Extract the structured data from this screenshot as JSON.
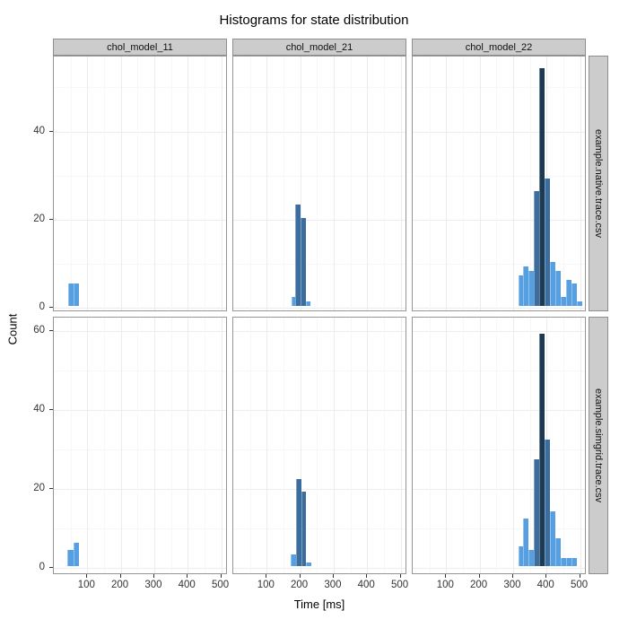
{
  "title": "Histograms for state distribution",
  "axes": {
    "x_label": "Time [ms]",
    "y_label": "Count"
  },
  "facets": {
    "columns": [
      "chol_model_11",
      "chol_model_21",
      "chol_model_22"
    ],
    "rows": [
      "example.native.trace.csv",
      "example.simgrid.trace.csv"
    ]
  },
  "colors": {
    "light": "#56a0e2",
    "mid": "#3b6e9e",
    "navy": "#1d3a55",
    "strip_bg": "#cccccc",
    "strip_border": "#8e8e8e",
    "panel_border": "#969696",
    "grid_major": "#ececec",
    "grid_minor": "#f7f7f7"
  },
  "chart_data": {
    "type": "bar",
    "subtype": "faceted-histogram",
    "title": "Histograms for state distribution",
    "xlabel": "Time [ms]",
    "ylabel": "Count",
    "grid": "on",
    "legend": "none",
    "x_domain": [
      0,
      520
    ],
    "x_ticks": [
      100,
      200,
      300,
      400,
      500
    ],
    "x_minor_gridlines": [
      50,
      150,
      250,
      350,
      450
    ],
    "row_scales": [
      {
        "row_label": "example.native.trace.csv",
        "ticks": [
          0,
          20,
          40
        ],
        "minor": [
          10,
          30,
          50
        ],
        "ymax": 57
      },
      {
        "row_label": "example.simgrid.trace.csv",
        "ticks": [
          0,
          20,
          40,
          60
        ],
        "minor": [
          10,
          30,
          50
        ],
        "ymax": 63.5
      }
    ],
    "panels": [
      {
        "row": 0,
        "col": 0,
        "row_label": "example.native.trace.csv",
        "col_label": "chol_model_11",
        "bars": [
          {
            "x": 44,
            "w": 16,
            "v": 5,
            "c": "light"
          },
          {
            "x": 60,
            "w": 16,
            "v": 5,
            "c": "light"
          }
        ]
      },
      {
        "row": 0,
        "col": 1,
        "row_label": "example.native.trace.csv",
        "col_label": "chol_model_21",
        "bars": [
          {
            "x": 175,
            "w": 11,
            "v": 2,
            "c": "light"
          },
          {
            "x": 186,
            "w": 16,
            "v": 23,
            "c": "mid"
          },
          {
            "x": 202,
            "w": 16,
            "v": 20,
            "c": "mid"
          },
          {
            "x": 218,
            "w": 13,
            "v": 1,
            "c": "light"
          }
        ]
      },
      {
        "row": 0,
        "col": 2,
        "row_label": "example.native.trace.csv",
        "col_label": "chol_model_22",
        "bars": [
          {
            "x": 315,
            "w": 16,
            "v": 7,
            "c": "light"
          },
          {
            "x": 331,
            "w": 16,
            "v": 9,
            "c": "light"
          },
          {
            "x": 347,
            "w": 16,
            "v": 8,
            "c": "light"
          },
          {
            "x": 363,
            "w": 16,
            "v": 26,
            "c": "mid"
          },
          {
            "x": 379,
            "w": 16,
            "v": 54,
            "c": "navy"
          },
          {
            "x": 395,
            "w": 16,
            "v": 29,
            "c": "mid"
          },
          {
            "x": 411,
            "w": 16,
            "v": 10,
            "c": "light"
          },
          {
            "x": 427,
            "w": 16,
            "v": 8,
            "c": "light"
          },
          {
            "x": 443,
            "w": 16,
            "v": 2,
            "c": "light"
          },
          {
            "x": 459,
            "w": 16,
            "v": 6,
            "c": "light"
          },
          {
            "x": 475,
            "w": 16,
            "v": 5,
            "c": "light"
          },
          {
            "x": 491,
            "w": 16,
            "v": 1,
            "c": "light"
          }
        ]
      },
      {
        "row": 1,
        "col": 0,
        "row_label": "example.simgrid.trace.csv",
        "col_label": "chol_model_11",
        "bars": [
          {
            "x": 40,
            "w": 20,
            "v": 4,
            "c": "light"
          },
          {
            "x": 60,
            "w": 16,
            "v": 6,
            "c": "light"
          }
        ]
      },
      {
        "row": 1,
        "col": 1,
        "row_label": "example.simgrid.trace.csv",
        "col_label": "chol_model_21",
        "bars": [
          {
            "x": 172,
            "w": 16,
            "v": 3,
            "c": "light"
          },
          {
            "x": 188,
            "w": 15,
            "v": 22,
            "c": "mid"
          },
          {
            "x": 203,
            "w": 15,
            "v": 19,
            "c": "mid"
          },
          {
            "x": 218,
            "w": 14,
            "v": 1,
            "c": "light"
          }
        ]
      },
      {
        "row": 1,
        "col": 2,
        "row_label": "example.simgrid.trace.csv",
        "col_label": "chol_model_22",
        "bars": [
          {
            "x": 315,
            "w": 16,
            "v": 5,
            "c": "light"
          },
          {
            "x": 331,
            "w": 16,
            "v": 12,
            "c": "light"
          },
          {
            "x": 347,
            "w": 16,
            "v": 4,
            "c": "light"
          },
          {
            "x": 363,
            "w": 16,
            "v": 27,
            "c": "mid"
          },
          {
            "x": 379,
            "w": 16,
            "v": 59,
            "c": "navy"
          },
          {
            "x": 395,
            "w": 16,
            "v": 32,
            "c": "mid"
          },
          {
            "x": 411,
            "w": 16,
            "v": 14,
            "c": "light"
          },
          {
            "x": 427,
            "w": 16,
            "v": 7,
            "c": "light"
          },
          {
            "x": 443,
            "w": 16,
            "v": 2,
            "c": "light"
          },
          {
            "x": 459,
            "w": 16,
            "v": 2,
            "c": "light"
          },
          {
            "x": 475,
            "w": 16,
            "v": 2,
            "c": "light"
          }
        ]
      }
    ]
  }
}
